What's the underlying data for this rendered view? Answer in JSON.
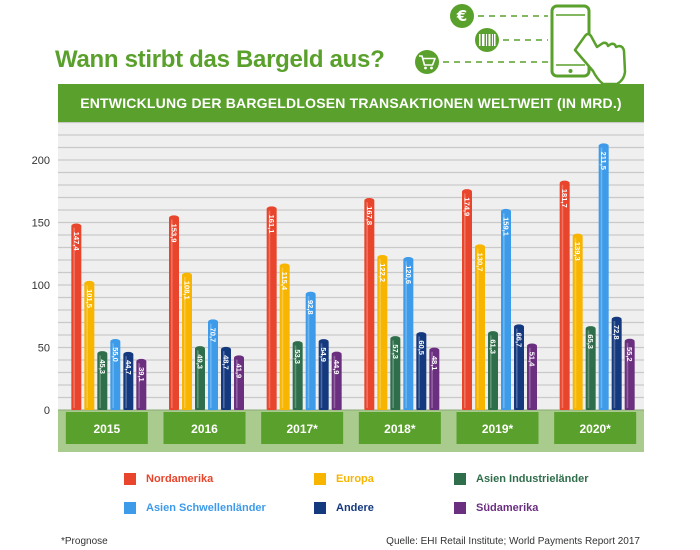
{
  "title": "Wann stirbt das Bargeld aus?",
  "banner": "ENTWICKLUNG DER BARGELDLOSEN TRANSAKTIONEN WELTWEIT (IN MRD.)",
  "footnote": "*Prognose",
  "source": "Quelle: EHI Retail Institute; World Payments Report 2017",
  "icons": [
    "euro-coin-icon",
    "barcode-icon",
    "shopping-cart-icon",
    "smartphone-icon",
    "pointing-hand-icon"
  ],
  "colors": {
    "brand_green": "#5aa02c",
    "plot_bg": "#efefef",
    "baseline_band": "#a9cc8e",
    "category_box": "#5aa02c"
  },
  "chart_data": {
    "type": "bar",
    "categories": [
      "2015",
      "2016",
      "2017*",
      "2018*",
      "2019*",
      "2020*"
    ],
    "ylim": [
      0,
      230
    ],
    "yticks": [
      0,
      50,
      100,
      150,
      200
    ],
    "grid": true,
    "legend_position": "bottom",
    "series": [
      {
        "name": "Nordamerika",
        "color": "#e8452c",
        "values": [
          147.4,
          153.9,
          161.1,
          167.8,
          174.9,
          181.7
        ],
        "labels": [
          "147,4",
          "153,9",
          "161,1",
          "167,8",
          "174,9",
          "181,7"
        ]
      },
      {
        "name": "Europa",
        "color": "#f7b500",
        "values": [
          101.5,
          108.1,
          115.4,
          122.2,
          130.7,
          139.3
        ],
        "labels": [
          "101,5",
          "108,1",
          "115,4",
          "122,2",
          "130,7",
          "139,3"
        ]
      },
      {
        "name": "Asien Industrieländer",
        "color": "#2f6e4b",
        "values": [
          45.3,
          49.3,
          53.3,
          57.3,
          61.3,
          65.3
        ],
        "labels": [
          "45,3",
          "49,3",
          "53,3",
          "57,3",
          "61,3",
          "65,3"
        ]
      },
      {
        "name": "Asien Schwellenländer",
        "color": "#3d9be9",
        "values": [
          55.0,
          70.7,
          92.8,
          120.6,
          159.1,
          211.5
        ],
        "labels": [
          "55,0",
          "70,7",
          "92,8",
          "120,6",
          "159,1",
          "211,5"
        ]
      },
      {
        "name": "Andere",
        "color": "#14397f",
        "values": [
          44.7,
          48.7,
          54.9,
          60.5,
          66.7,
          72.8
        ],
        "labels": [
          "44,7",
          "48,7",
          "54,9",
          "60,5",
          "66,7",
          "72,8"
        ]
      },
      {
        "name": "Südamerika",
        "color": "#6b2f80",
        "values": [
          39.1,
          41.9,
          44.9,
          48.1,
          51.4,
          55.2
        ],
        "labels": [
          "39,1",
          "41,9",
          "44,9",
          "48,1",
          "51,4",
          "55,2"
        ]
      }
    ]
  }
}
